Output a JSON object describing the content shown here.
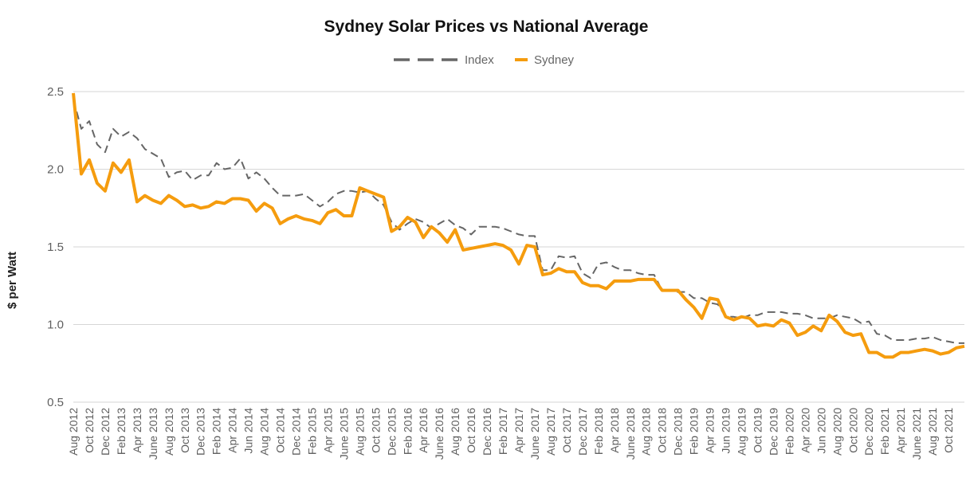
{
  "chart_data": {
    "type": "line",
    "title": "Sydney Solar Prices vs National Average",
    "xlabel": "",
    "ylabel": "$ per Watt",
    "ylim": [
      0.5,
      2.5
    ],
    "yticks": [
      "0.5",
      "1.0",
      "1.5",
      "2.0",
      "2.5"
    ],
    "yticks_values": [
      0.5,
      1.0,
      1.5,
      2.0,
      2.5
    ],
    "grid": true,
    "legend_position": "top-center",
    "x": [
      "2012-08",
      "2012-09",
      "2012-10",
      "2012-11",
      "2012-12",
      "2013-01",
      "2013-02",
      "2013-03",
      "2013-04",
      "2013-05",
      "2013-06",
      "2013-07",
      "2013-08",
      "2013-09",
      "2013-10",
      "2013-11",
      "2013-12",
      "2014-01",
      "2014-02",
      "2014-03",
      "2014-04",
      "2014-05",
      "2014-06",
      "2014-07",
      "2014-08",
      "2014-09",
      "2014-10",
      "2014-11",
      "2014-12",
      "2015-01",
      "2015-02",
      "2015-03",
      "2015-04",
      "2015-05",
      "2015-06",
      "2015-07",
      "2015-08",
      "2015-09",
      "2015-10",
      "2015-11",
      "2015-12",
      "2016-01",
      "2016-02",
      "2016-03",
      "2016-04",
      "2016-05",
      "2016-06",
      "2016-07",
      "2016-08",
      "2016-09",
      "2016-10",
      "2016-11",
      "2016-12",
      "2017-01",
      "2017-02",
      "2017-03",
      "2017-04",
      "2017-05",
      "2017-06",
      "2017-07",
      "2017-08",
      "2017-09",
      "2017-10",
      "2017-11",
      "2017-12",
      "2018-01",
      "2018-02",
      "2018-03",
      "2018-04",
      "2018-05",
      "2018-06",
      "2018-07",
      "2018-08",
      "2018-09",
      "2018-10",
      "2018-11",
      "2018-12",
      "2019-01",
      "2019-02",
      "2019-03",
      "2019-04",
      "2019-05",
      "2019-06",
      "2019-07",
      "2019-08",
      "2019-09",
      "2019-10",
      "2019-11",
      "2019-12",
      "2020-01",
      "2020-02",
      "2020-03",
      "2020-04",
      "2020-05",
      "2020-06",
      "2020-07",
      "2020-08",
      "2020-09",
      "2020-10",
      "2020-11",
      "2020-12",
      "2021-01",
      "2021-02",
      "2021-03",
      "2021-04",
      "2021-05",
      "2021-06",
      "2021-07",
      "2021-08",
      "2021-09",
      "2021-10",
      "2021-11",
      "2021-12"
    ],
    "tick_labels": [
      "Aug 2012",
      "Oct 2012",
      "Dec 2012",
      "Feb 2013",
      "Apr 2013",
      "June 2013",
      "Aug 2013",
      "Oct 2013",
      "Dec 2013",
      "Feb 2014",
      "Apr 2014",
      "Jun 2014",
      "Aug 2014",
      "Oct 2014",
      "Dec 2014",
      "Feb 2015",
      "Apr 2015",
      "June 2015",
      "Aug 2015",
      "Oct 2015",
      "Dec 2015",
      "Feb 2016",
      "Apr 2016",
      "June 2016",
      "Aug 2016",
      "Oct 2016",
      "Dec 2016",
      "Feb 2017",
      "Apr 2017",
      "June 2017",
      "Aug 2017",
      "Oct 2017",
      "Dec 2017",
      "Feb 2018",
      "Apr 2018",
      "June 2018",
      "Aug 2018",
      "Oct 2018",
      "Dec 2018",
      "Feb 2019",
      "Apr 2019",
      "Jun 2019",
      "Aug 2019",
      "Oct 2019",
      "Dec 2019",
      "Feb 2020",
      "Apr 2020",
      "Jun 2020",
      "Aug 2020",
      "Oct 2020",
      "Dec 2020",
      "Feb 2021",
      "Apr 2021",
      "June 2021",
      "Aug 2021",
      "Oct 2021"
    ],
    "series": [
      {
        "name": "Index",
        "color": "#666666",
        "style": "dashed",
        "values": [
          2.45,
          2.26,
          2.31,
          2.16,
          2.11,
          2.26,
          2.21,
          2.24,
          2.2,
          2.13,
          2.1,
          2.07,
          1.95,
          1.98,
          1.99,
          1.93,
          1.96,
          1.96,
          2.04,
          2.0,
          2.01,
          2.07,
          1.94,
          1.98,
          1.94,
          1.88,
          1.83,
          1.83,
          1.83,
          1.84,
          1.8,
          1.76,
          1.79,
          1.84,
          1.86,
          1.86,
          1.85,
          1.86,
          1.81,
          1.77,
          1.66,
          1.61,
          1.65,
          1.68,
          1.66,
          1.62,
          1.65,
          1.68,
          1.64,
          1.62,
          1.58,
          1.63,
          1.63,
          1.63,
          1.62,
          1.6,
          1.58,
          1.57,
          1.57,
          1.35,
          1.35,
          1.44,
          1.43,
          1.44,
          1.33,
          1.3,
          1.39,
          1.4,
          1.37,
          1.35,
          1.35,
          1.33,
          1.32,
          1.32,
          1.22,
          1.22,
          1.21,
          1.21,
          1.17,
          1.17,
          1.14,
          1.13,
          1.05,
          1.05,
          1.04,
          1.06,
          1.06,
          1.08,
          1.08,
          1.08,
          1.07,
          1.07,
          1.06,
          1.04,
          1.04,
          1.04,
          1.06,
          1.05,
          1.04,
          1.01,
          1.02,
          0.94,
          0.93,
          0.9,
          0.9,
          0.9,
          0.91,
          0.91,
          0.92,
          0.9,
          0.89,
          0.88,
          0.88
        ]
      },
      {
        "name": "Sydney",
        "color": "#f59c0e",
        "style": "solid",
        "values": [
          2.49,
          1.97,
          2.06,
          1.91,
          1.86,
          2.04,
          1.98,
          2.06,
          1.79,
          1.83,
          1.8,
          1.78,
          1.83,
          1.8,
          1.76,
          1.77,
          1.75,
          1.76,
          1.79,
          1.78,
          1.81,
          1.81,
          1.8,
          1.73,
          1.78,
          1.75,
          1.65,
          1.68,
          1.7,
          1.68,
          1.67,
          1.65,
          1.72,
          1.74,
          1.7,
          1.7,
          1.88,
          1.86,
          1.84,
          1.82,
          1.6,
          1.63,
          1.69,
          1.66,
          1.56,
          1.63,
          1.59,
          1.53,
          1.61,
          1.48,
          1.49,
          1.5,
          1.51,
          1.52,
          1.51,
          1.48,
          1.39,
          1.51,
          1.5,
          1.32,
          1.33,
          1.36,
          1.34,
          1.34,
          1.27,
          1.25,
          1.25,
          1.23,
          1.28,
          1.28,
          1.28,
          1.29,
          1.29,
          1.29,
          1.22,
          1.22,
          1.22,
          1.16,
          1.11,
          1.04,
          1.17,
          1.16,
          1.05,
          1.03,
          1.05,
          1.04,
          0.99,
          1.0,
          0.99,
          1.03,
          1.01,
          0.93,
          0.95,
          0.99,
          0.96,
          1.06,
          1.02,
          0.95,
          0.93,
          0.94,
          0.82,
          0.82,
          0.79,
          0.79,
          0.82,
          0.82,
          0.83,
          0.84,
          0.83,
          0.81,
          0.82,
          0.85,
          0.86
        ]
      }
    ]
  }
}
